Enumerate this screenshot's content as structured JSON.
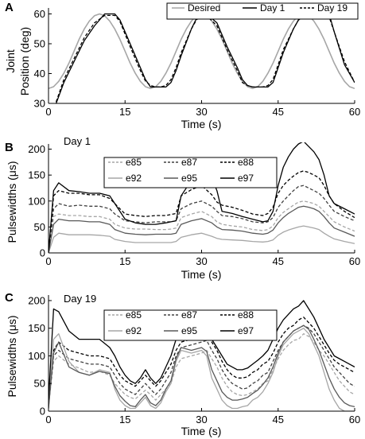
{
  "chart_data": [
    {
      "panel": "A",
      "type": "line",
      "title": "",
      "xlabel": "Time (s)",
      "ylabel_lines": [
        "Joint",
        "Position (deg)"
      ],
      "xlim": [
        0,
        60
      ],
      "ylim": [
        30,
        62
      ],
      "xticks": [
        "0",
        "15",
        "30",
        "45",
        "60"
      ],
      "yticks": [
        "30",
        "40",
        "50",
        "60"
      ],
      "legend_position": "top-right",
      "legend": [
        "Desired",
        "Day 1",
        "Day 19"
      ],
      "series": [
        {
          "name": "Desired",
          "color": "#a6a6a6",
          "style": "solid",
          "x": [
            0,
            1,
            2,
            3,
            4,
            5,
            6,
            7,
            8,
            9,
            10,
            11,
            12,
            13,
            14,
            15,
            16,
            17,
            18,
            19,
            20,
            21,
            22,
            23,
            24,
            25,
            26,
            27,
            28,
            29,
            30,
            31,
            32,
            33,
            34,
            35,
            36,
            37,
            38,
            39,
            40,
            41,
            42,
            43,
            44,
            45,
            46,
            47,
            48,
            49,
            50,
            51,
            52,
            53,
            54,
            55,
            56,
            57,
            58,
            59,
            60
          ],
          "y": [
            35,
            35.6,
            37.4,
            40.1,
            43.5,
            47.5,
            51.5,
            54.9,
            57.6,
            59.4,
            60,
            59.4,
            57.6,
            54.9,
            51.5,
            47.5,
            43.5,
            40.1,
            37.4,
            35.6,
            35,
            35.6,
            37.4,
            40.1,
            43.5,
            47.5,
            51.5,
            54.9,
            57.6,
            59.4,
            60,
            59.4,
            57.6,
            54.9,
            51.5,
            47.5,
            43.5,
            40.1,
            37.4,
            35.6,
            35,
            35.6,
            37.4,
            40.1,
            43.5,
            47.5,
            51.5,
            54.9,
            57.6,
            59.4,
            60,
            59.4,
            57.6,
            54.9,
            51.5,
            47.5,
            43.5,
            40.1,
            37.4,
            35.6,
            35
          ]
        },
        {
          "name": "Day 1",
          "color": "#000000",
          "style": "solid",
          "x": [
            1.5,
            3,
            5,
            7,
            9,
            11,
            13,
            14,
            16,
            18,
            19,
            20,
            21,
            22,
            23,
            24,
            25,
            26,
            28,
            29,
            30,
            31,
            33,
            35,
            37,
            38,
            39,
            40,
            41,
            42,
            43,
            44,
            45,
            46,
            48,
            49,
            50,
            51,
            52,
            53,
            54,
            55,
            56,
            58,
            60
          ],
          "y": [
            30,
            37,
            44,
            51,
            56,
            60,
            60,
            58,
            50,
            42,
            38,
            35.5,
            35.5,
            35.5,
            35.5,
            37,
            41,
            46,
            55,
            58.5,
            60,
            60,
            57,
            49,
            42,
            38,
            36,
            35.5,
            35.5,
            35.5,
            35.5,
            37,
            42,
            47,
            55,
            58,
            59,
            60,
            60,
            60,
            60,
            60,
            54,
            43,
            37
          ]
        },
        {
          "name": "Day 19",
          "color": "#000000",
          "style": "dashed",
          "x": [
            1.5,
            3,
            5,
            7,
            9,
            11,
            13,
            14,
            16,
            18,
            19,
            20,
            21,
            22,
            23,
            24,
            25,
            26,
            28,
            29,
            30,
            31,
            33,
            35,
            37,
            38,
            39,
            40,
            41,
            42,
            43,
            44,
            45,
            46,
            48,
            49,
            50,
            51,
            52,
            53,
            54,
            55,
            56,
            58,
            60
          ],
          "y": [
            30.5,
            38,
            45,
            52,
            57,
            59.5,
            59.5,
            57.5,
            49,
            41,
            37.5,
            36,
            35.5,
            35.5,
            36,
            38,
            42,
            47,
            55,
            58,
            59.5,
            59.5,
            56,
            48,
            41,
            37,
            36,
            35.5,
            35.5,
            35.5,
            36,
            38,
            43,
            48,
            55,
            58,
            59,
            59.5,
            59.5,
            59.5,
            59.5,
            59,
            54,
            44,
            37
          ]
        }
      ]
    },
    {
      "panel": "B",
      "type": "line",
      "title": "",
      "annotation": "Day 1",
      "xlabel": "Time (s)",
      "ylabel": "Pulsewidths (μs)",
      "xlim": [
        0,
        60
      ],
      "ylim": [
        0,
        210
      ],
      "xticks": [
        "0",
        "15",
        "30",
        "45",
        "60"
      ],
      "yticks": [
        "0",
        "50",
        "100",
        "150",
        "200"
      ],
      "legend_position": "top-center",
      "x": [
        0,
        1,
        2,
        4,
        6,
        8,
        10,
        12,
        13,
        15,
        17,
        19,
        21,
        23,
        24,
        25,
        26,
        28,
        30,
        32,
        33,
        34,
        36,
        38,
        40,
        42,
        43,
        44,
        45,
        46,
        47,
        48,
        49,
        50,
        51,
        52,
        53,
        54,
        55,
        56,
        58,
        60
      ],
      "series": [
        {
          "name": "e85",
          "color": "#a6a6a6",
          "style": "dashed",
          "values": [
            0,
            70,
            75,
            72,
            72,
            70,
            70,
            65,
            55,
            48,
            46,
            46,
            45,
            45,
            46,
            48,
            68,
            75,
            80,
            70,
            60,
            55,
            52,
            50,
            45,
            43,
            45,
            52,
            68,
            78,
            85,
            92,
            98,
            100,
            98,
            95,
            90,
            80,
            70,
            60,
            50,
            42
          ]
        },
        {
          "name": "e87",
          "color": "#404040",
          "style": "dashed",
          "values": [
            0,
            85,
            95,
            90,
            92,
            90,
            90,
            85,
            75,
            62,
            60,
            58,
            60,
            60,
            60,
            62,
            85,
            95,
            100,
            90,
            80,
            72,
            70,
            66,
            60,
            58,
            60,
            68,
            88,
            100,
            110,
            120,
            128,
            130,
            125,
            120,
            115,
            105,
            92,
            80,
            70,
            62
          ]
        },
        {
          "name": "e88",
          "color": "#000000",
          "style": "dashed",
          "values": [
            0,
            110,
            120,
            115,
            115,
            112,
            112,
            105,
            95,
            75,
            72,
            70,
            72,
            72,
            74,
            76,
            110,
            122,
            130,
            112,
            98,
            92,
            88,
            82,
            75,
            72,
            76,
            88,
            115,
            130,
            140,
            148,
            155,
            158,
            155,
            150,
            145,
            130,
            110,
            95,
            80,
            68
          ]
        },
        {
          "name": "e92",
          "color": "#a6a6a6",
          "style": "solid",
          "values": [
            0,
            30,
            38,
            35,
            35,
            35,
            34,
            32,
            26,
            22,
            20,
            20,
            20,
            20,
            20,
            22,
            30,
            35,
            38,
            32,
            28,
            26,
            25,
            24,
            22,
            21,
            22,
            25,
            34,
            40,
            44,
            47,
            50,
            52,
            50,
            48,
            45,
            38,
            32,
            27,
            22,
            18
          ]
        },
        {
          "name": "e95",
          "color": "#595959",
          "style": "solid",
          "values": [
            0,
            55,
            65,
            62,
            62,
            60,
            60,
            55,
            45,
            38,
            36,
            35,
            36,
            36,
            36,
            38,
            55,
            62,
            66,
            58,
            50,
            45,
            44,
            42,
            38,
            36,
            38,
            44,
            58,
            68,
            76,
            82,
            88,
            90,
            88,
            85,
            80,
            70,
            58,
            48,
            40,
            32
          ]
        },
        {
          "name": "e97",
          "color": "#000000",
          "style": "solid",
          "values": [
            0,
            120,
            135,
            120,
            118,
            115,
            115,
            110,
            95,
            65,
            58,
            55,
            55,
            58,
            60,
            62,
            110,
            140,
            150,
            145,
            120,
            80,
            76,
            70,
            65,
            60,
            62,
            80,
            130,
            165,
            185,
            200,
            210,
            215,
            205,
            195,
            180,
            150,
            110,
            95,
            85,
            75
          ]
        }
      ]
    },
    {
      "panel": "C",
      "type": "line",
      "title": "",
      "annotation": "Day 19",
      "xlabel": "Time (s)",
      "ylabel": "Pulsewidths (μs)",
      "xlim": [
        0,
        60
      ],
      "ylim": [
        0,
        210
      ],
      "xticks": [
        "0",
        "15",
        "30",
        "45",
        "60"
      ],
      "yticks": [
        "0",
        "50",
        "100",
        "150",
        "200"
      ],
      "legend_position": "top-center",
      "x": [
        0,
        1,
        2,
        4,
        6,
        8,
        10,
        12,
        13,
        14,
        15,
        16,
        17,
        18,
        19,
        20,
        21,
        22,
        23,
        24,
        25,
        26,
        28,
        30,
        31,
        32,
        33,
        34,
        35,
        36,
        37,
        38,
        39,
        40,
        41,
        42,
        43,
        44,
        45,
        46,
        47,
        48,
        49,
        50,
        51,
        52,
        53,
        54,
        55,
        56,
        57,
        58,
        59,
        60
      ],
      "series": [
        {
          "name": "e85",
          "color": "#a6a6a6",
          "style": "dashed",
          "values": [
            10,
            90,
            100,
            85,
            78,
            70,
            72,
            65,
            50,
            40,
            30,
            25,
            22,
            30,
            38,
            30,
            20,
            30,
            40,
            50,
            80,
            95,
            100,
            105,
            110,
            95,
            80,
            60,
            45,
            35,
            30,
            28,
            30,
            35,
            40,
            50,
            55,
            75,
            95,
            110,
            120,
            128,
            130,
            140,
            135,
            125,
            110,
            100,
            85,
            70,
            55,
            45,
            35,
            30
          ]
        },
        {
          "name": "e87",
          "color": "#404040",
          "style": "dashed",
          "values": [
            10,
            100,
            110,
            95,
            90,
            85,
            85,
            80,
            65,
            50,
            40,
            35,
            30,
            40,
            50,
            40,
            30,
            40,
            55,
            70,
            100,
            115,
            120,
            125,
            128,
            110,
            95,
            75,
            60,
            50,
            45,
            40,
            42,
            50,
            55,
            65,
            70,
            90,
            110,
            125,
            135,
            145,
            150,
            155,
            150,
            140,
            125,
            110,
            95,
            80,
            70,
            60,
            50,
            45
          ]
        },
        {
          "name": "e88",
          "color": "#000000",
          "style": "dashed",
          "values": [
            15,
            110,
            125,
            110,
            105,
            100,
            100,
            95,
            80,
            65,
            55,
            50,
            45,
            55,
            65,
            55,
            45,
            55,
            70,
            85,
            110,
            125,
            130,
            135,
            140,
            125,
            110,
            90,
            75,
            65,
            60,
            60,
            62,
            70,
            75,
            85,
            90,
            105,
            125,
            140,
            150,
            155,
            165,
            170,
            160,
            150,
            135,
            120,
            105,
            92,
            85,
            80,
            75,
            70
          ]
        },
        {
          "name": "e92",
          "color": "#a6a6a6",
          "style": "solid",
          "values": [
            5,
            130,
            140,
            90,
            70,
            65,
            75,
            70,
            40,
            20,
            10,
            5,
            5,
            15,
            25,
            10,
            5,
            15,
            35,
            50,
            90,
            110,
            105,
            110,
            100,
            60,
            40,
            20,
            10,
            5,
            5,
            8,
            10,
            20,
            25,
            35,
            50,
            70,
            100,
            120,
            130,
            140,
            145,
            150,
            140,
            120,
            100,
            70,
            40,
            20,
            5,
            0,
            0,
            0
          ]
        },
        {
          "name": "e95",
          "color": "#595959",
          "style": "solid",
          "values": [
            5,
            105,
            125,
            80,
            70,
            65,
            72,
            68,
            45,
            28,
            18,
            10,
            8,
            20,
            30,
            15,
            10,
            20,
            40,
            55,
            95,
            115,
            110,
            115,
            108,
            75,
            55,
            35,
            25,
            20,
            20,
            22,
            25,
            32,
            38,
            48,
            60,
            80,
            105,
            125,
            135,
            145,
            150,
            155,
            148,
            130,
            110,
            85,
            60,
            40,
            25,
            15,
            10,
            8
          ]
        },
        {
          "name": "e97",
          "color": "#000000",
          "style": "solid",
          "values": [
            20,
            185,
            180,
            145,
            130,
            130,
            130,
            115,
            100,
            80,
            65,
            55,
            50,
            60,
            75,
            60,
            50,
            60,
            80,
            100,
            130,
            145,
            150,
            145,
            155,
            130,
            115,
            100,
            85,
            80,
            75,
            75,
            78,
            85,
            92,
            100,
            110,
            130,
            150,
            165,
            175,
            185,
            190,
            200,
            185,
            170,
            150,
            130,
            115,
            100,
            95,
            90,
            85,
            80
          ]
        }
      ]
    }
  ]
}
